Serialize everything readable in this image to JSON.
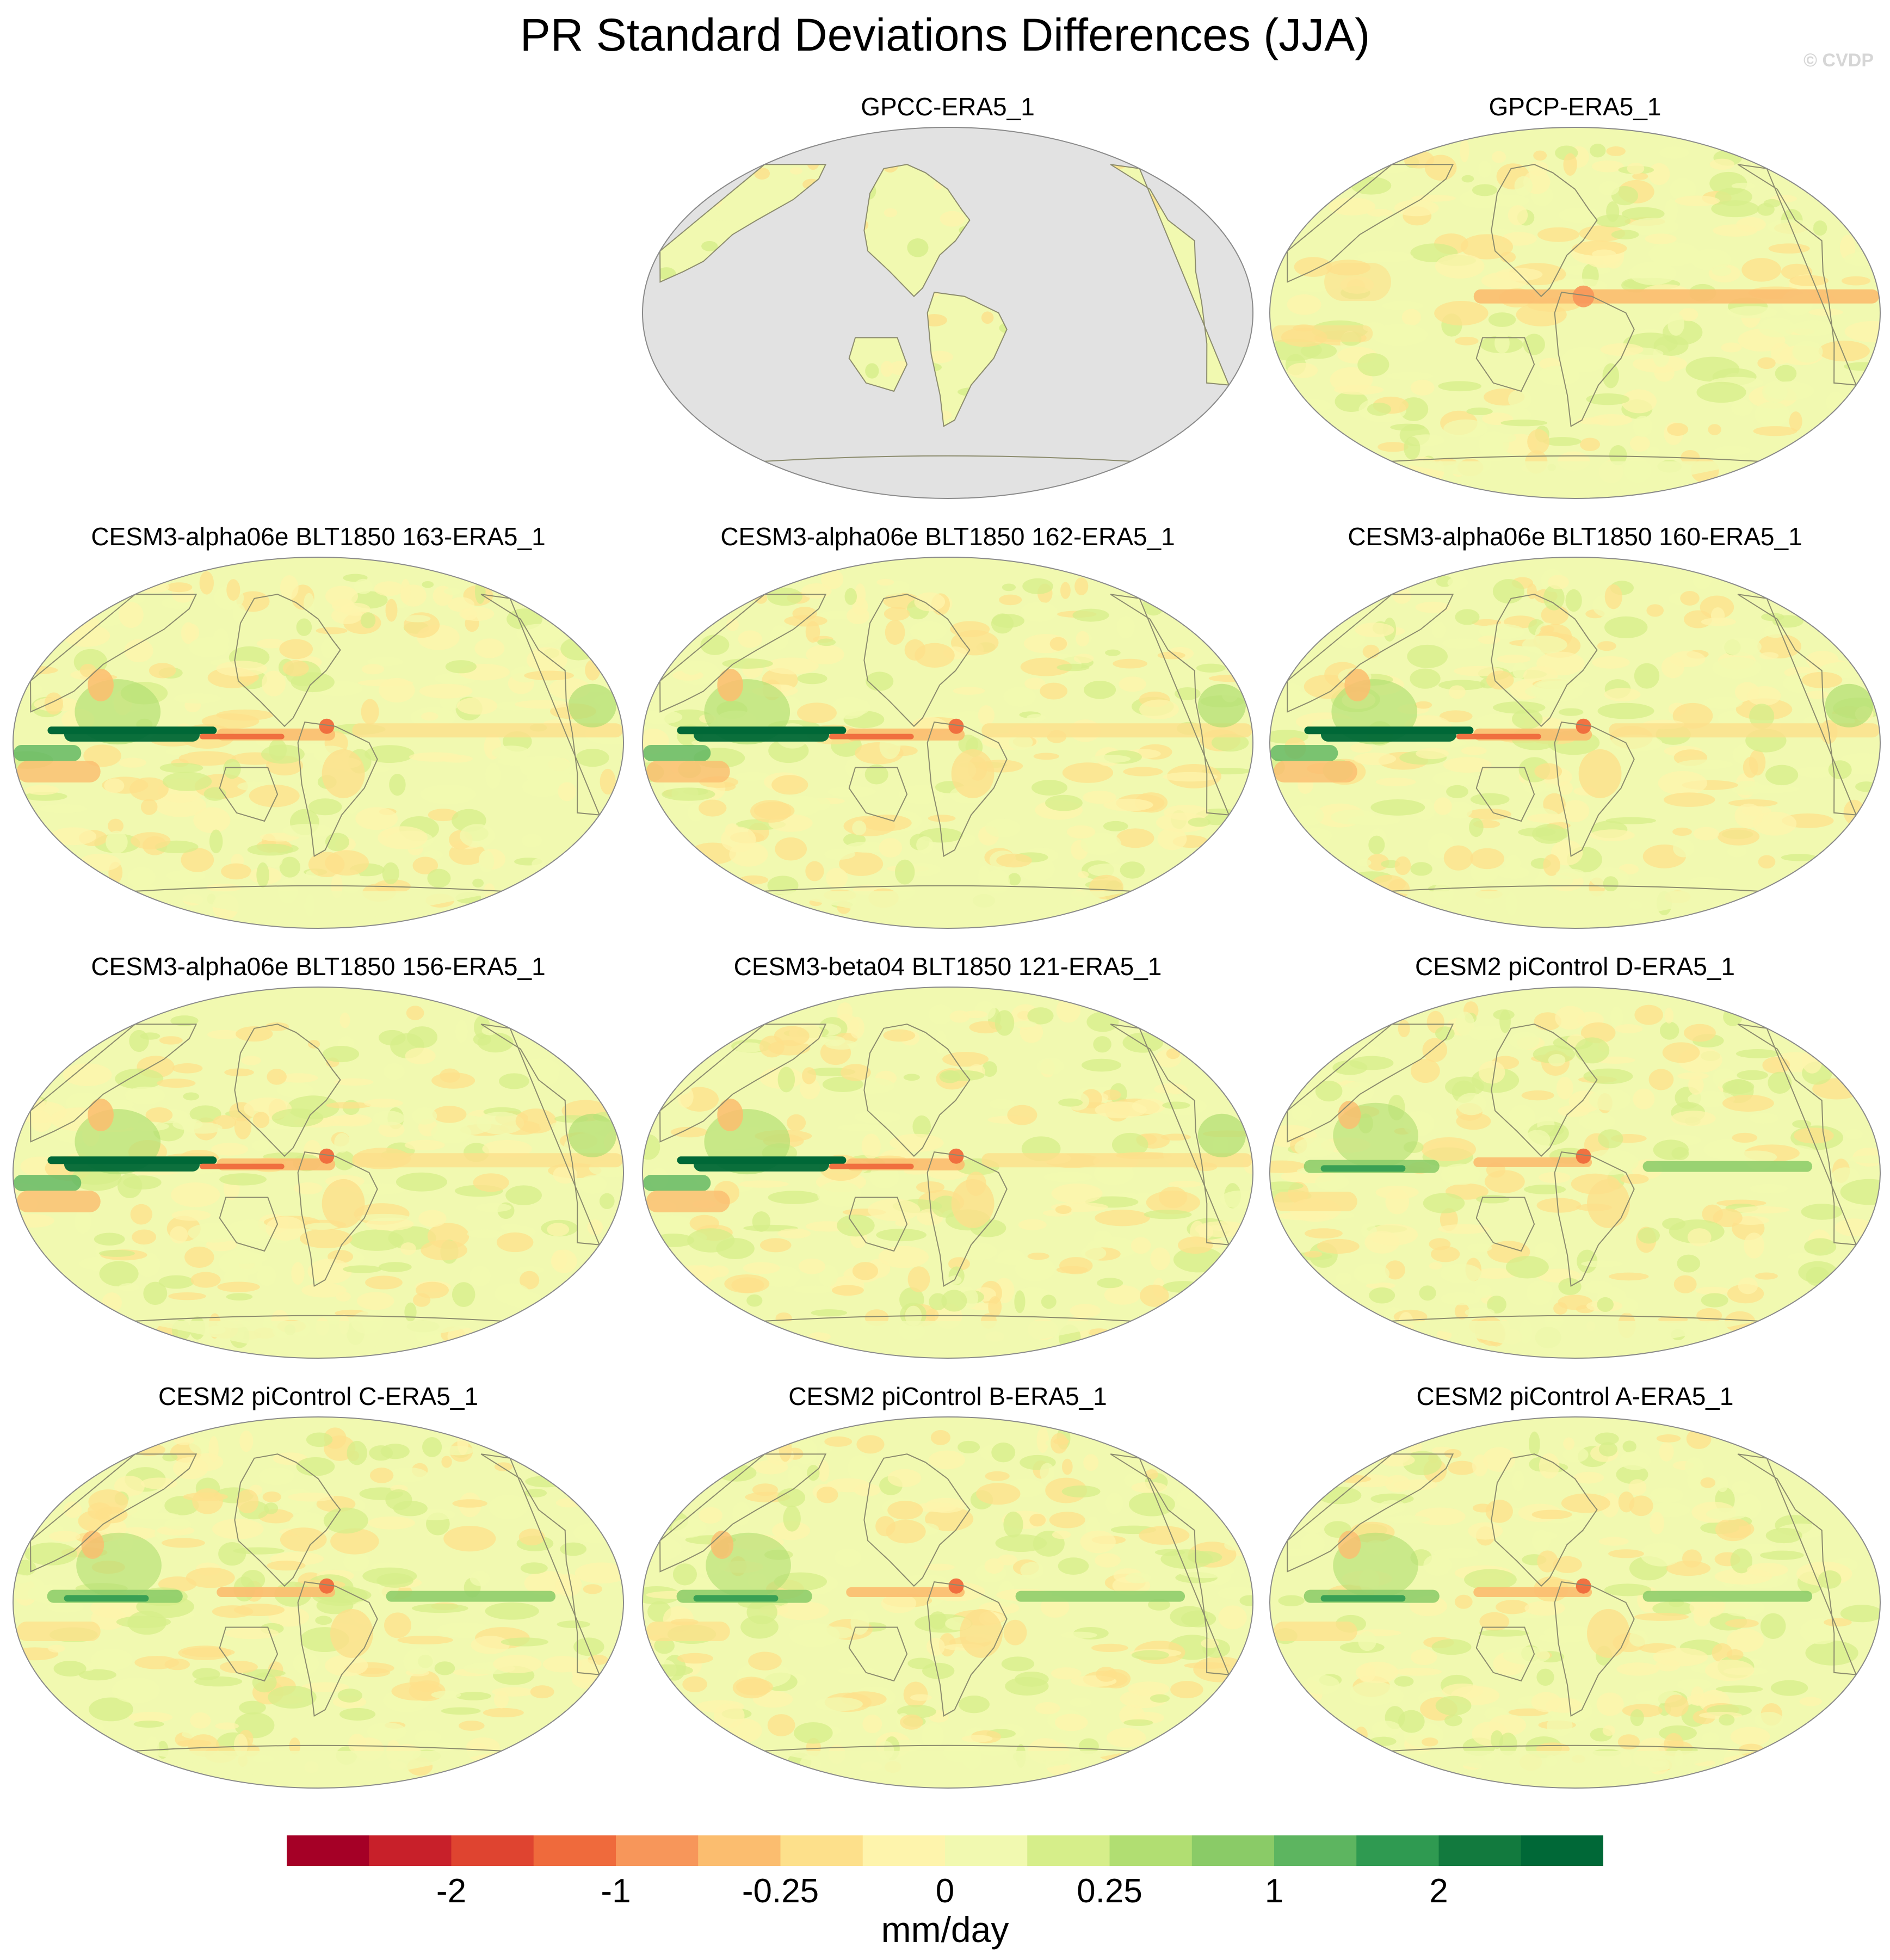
{
  "title": "PR Standard Deviations Differences (JJA)",
  "watermark": "© CVDP",
  "chart_data": {
    "type": "heatmap",
    "description_type": "multi-panel global map of standard deviation differences",
    "variable": "PR",
    "season": "JJA",
    "units": "mm/day",
    "panels": [
      {
        "id": "gpcc",
        "title": "GPCC-ERA5_1",
        "row": 0,
        "col": 1,
        "land_only": true,
        "tropical_band": "weak"
      },
      {
        "id": "gpcp",
        "title": "GPCP-ERA5_1",
        "row": 0,
        "col": 2,
        "land_only": false,
        "tropical_band": "negative"
      },
      {
        "id": "a163",
        "title": "CESM3-alpha06e BLT1850 163-ERA5_1",
        "row": 1,
        "col": 0,
        "land_only": false,
        "tropical_band": "strong"
      },
      {
        "id": "a162",
        "title": "CESM3-alpha06e BLT1850 162-ERA5_1",
        "row": 1,
        "col": 1,
        "land_only": false,
        "tropical_band": "strong"
      },
      {
        "id": "a160",
        "title": "CESM3-alpha06e BLT1850 160-ERA5_1",
        "row": 1,
        "col": 2,
        "land_only": false,
        "tropical_band": "strong"
      },
      {
        "id": "a156",
        "title": "CESM3-alpha06e BLT1850 156-ERA5_1",
        "row": 2,
        "col": 0,
        "land_only": false,
        "tropical_band": "strong"
      },
      {
        "id": "b121",
        "title": "CESM3-beta04 BLT1850 121-ERA5_1",
        "row": 2,
        "col": 1,
        "land_only": false,
        "tropical_band": "strong"
      },
      {
        "id": "pcD",
        "title": "CESM2 piControl D-ERA5_1",
        "row": 2,
        "col": 2,
        "land_only": false,
        "tropical_band": "moderate"
      },
      {
        "id": "pcC",
        "title": "CESM2 piControl C-ERA5_1",
        "row": 3,
        "col": 0,
        "land_only": false,
        "tropical_band": "moderate"
      },
      {
        "id": "pcB",
        "title": "CESM2 piControl B-ERA5_1",
        "row": 3,
        "col": 1,
        "land_only": false,
        "tropical_band": "moderate"
      },
      {
        "id": "pcA",
        "title": "CESM2 piControl A-ERA5_1",
        "row": 3,
        "col": 2,
        "land_only": false,
        "tropical_band": "moderate"
      }
    ],
    "colorbar": {
      "label": "mm/day",
      "tick_labels": [
        "-2",
        "-1",
        "-0.25",
        "0",
        "0.25",
        "1",
        "2"
      ],
      "tick_boundary_index": [
        2,
        4,
        6,
        8,
        10,
        12,
        14
      ],
      "colors": [
        "#a50026",
        "#c8202a",
        "#df4430",
        "#ef6a3c",
        "#f7965a",
        "#fbbd6f",
        "#fde08b",
        "#fef4ac",
        "#f1f9b0",
        "#d6ee8a",
        "#b1de72",
        "#8acb67",
        "#5db560",
        "#2f9a51",
        "#127a3e",
        "#006837"
      ]
    },
    "map_colors": {
      "missing": "#e2e2e2",
      "coast": "#8c8c6e",
      "outline": "#8a8a8a"
    }
  }
}
